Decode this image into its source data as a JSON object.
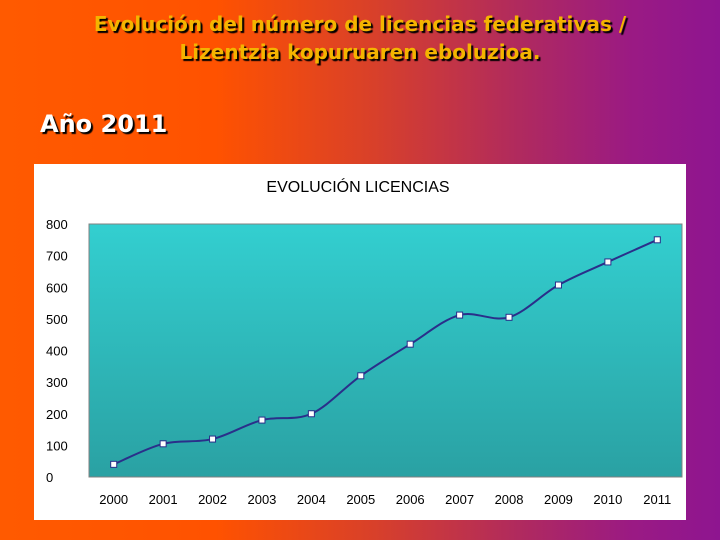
{
  "slide": {
    "title_line1": "Evolución del número de licencias federativas /",
    "title_line2": "Lizentzia kopuruaren eboluzioa.",
    "year_label": "Año 2011"
  },
  "colors": {
    "plot_bg_top": "#33cfd0",
    "plot_bg_bottom": "#2aa1a3",
    "line": "#2a2f8a",
    "marker_fill": "#ffffff",
    "title_color": "#f4b400"
  },
  "chart_data": {
    "type": "line",
    "title": "EVOLUCIÓN LICENCIAS",
    "xlabel": "",
    "ylabel": "",
    "categories": [
      "2000",
      "2001",
      "2002",
      "2003",
      "2004",
      "2005",
      "2006",
      "2007",
      "2008",
      "2009",
      "2010",
      "2011"
    ],
    "values": [
      40,
      105,
      120,
      180,
      200,
      320,
      420,
      512,
      505,
      607,
      680,
      750
    ],
    "ylim": [
      0,
      800
    ],
    "yticks": [
      0,
      100,
      200,
      300,
      400,
      500,
      600,
      700,
      800
    ],
    "grid": false,
    "legend": "none",
    "line_style": "smooth",
    "markers": "square"
  }
}
